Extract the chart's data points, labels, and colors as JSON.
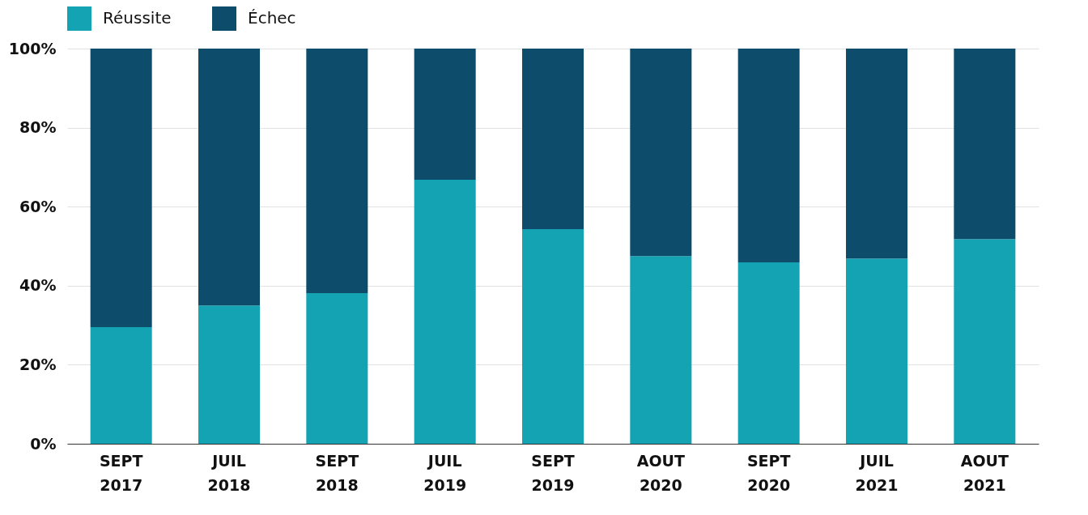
{
  "chart_data": {
    "type": "bar",
    "stacked": true,
    "categories": [
      "SEPT 2017",
      "JUIL 2018",
      "SEPT 2018",
      "JUIL 2019",
      "SEPT 2019",
      "AOUT 2020",
      "SEPT 2020",
      "JUIL 2021",
      "AOUT 2021"
    ],
    "series": [
      {
        "name": "Réussite",
        "color": "#14a3b3",
        "values": [
          29.5,
          35,
          38.1,
          66.8,
          54.3,
          47.5,
          45.9,
          46.9,
          51.8
        ]
      },
      {
        "name": "Échec",
        "color": "#0d4c6a",
        "values": [
          70.5,
          65,
          61.9,
          33.2,
          45.7,
          52.5,
          54.1,
          53.1,
          48.2
        ]
      }
    ],
    "ylim": [
      0,
      100
    ],
    "yticks": [
      {
        "value": 0,
        "label": "0%"
      },
      {
        "value": 20,
        "label": "20%"
      },
      {
        "value": 40,
        "label": "40%"
      },
      {
        "value": 60,
        "label": "60%"
      },
      {
        "value": 80,
        "label": "80%"
      },
      {
        "value": 100,
        "label": "100%"
      }
    ],
    "grid": "y",
    "legend": "top"
  }
}
